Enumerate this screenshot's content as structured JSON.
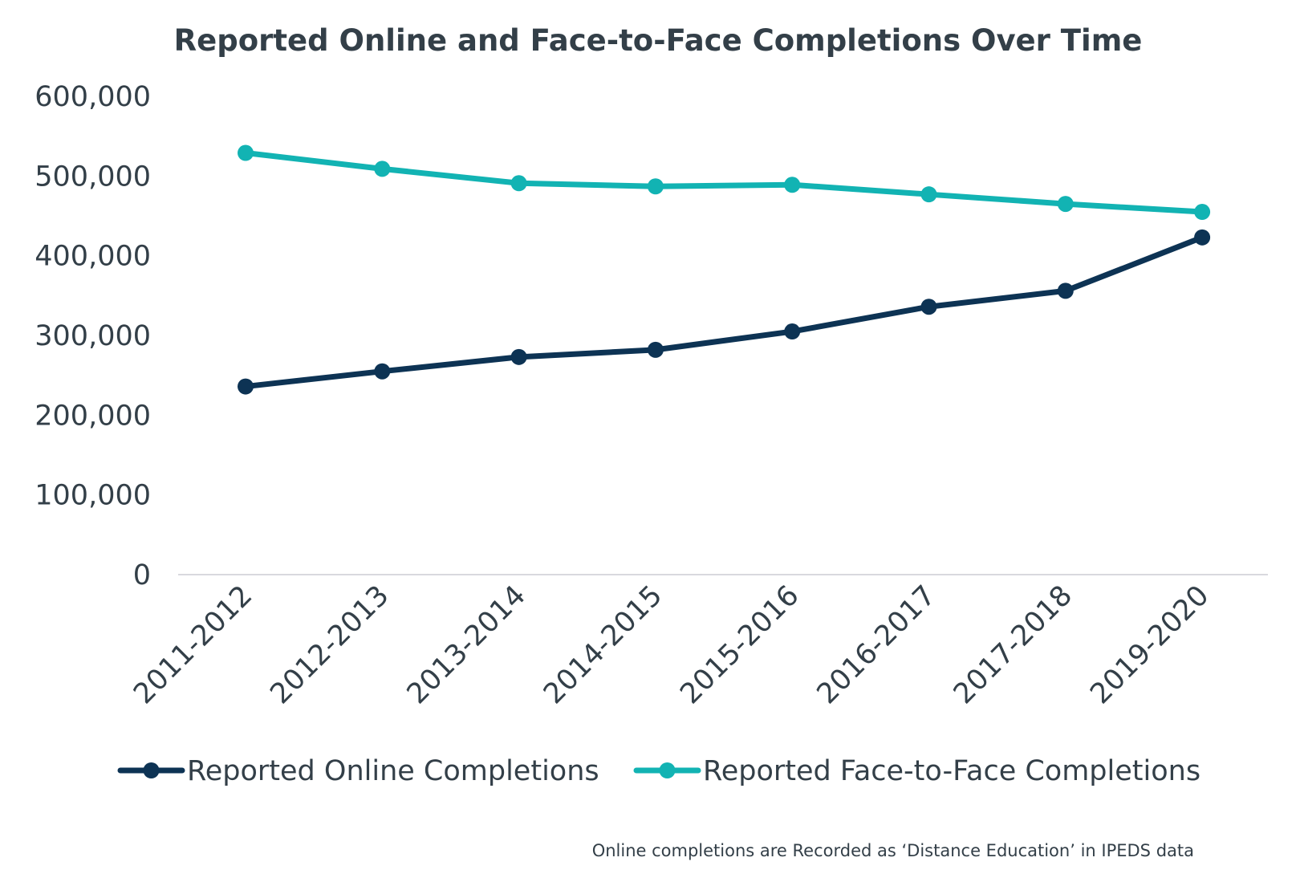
{
  "chart_data": {
    "type": "line",
    "title": "Reported Online and Face-to-Face Completions Over Time",
    "categories": [
      "2011-2012",
      "2012-2013",
      "2013-2014",
      "2014-2015",
      "2015-2016",
      "2016-2017",
      "2017-2018",
      "2019-2020"
    ],
    "series": [
      {
        "name": "Reported Online Completions",
        "color": "#0d3354",
        "values": [
          236000,
          255000,
          273000,
          282000,
          305000,
          336000,
          356000,
          423000
        ]
      },
      {
        "name": "Reported Face-to-Face Completions",
        "color": "#12b3b3",
        "values": [
          529000,
          509000,
          491000,
          487000,
          489000,
          477000,
          465000,
          455000
        ]
      }
    ],
    "ylim": [
      0,
      600000
    ],
    "yticks": [
      0,
      100000,
      200000,
      300000,
      400000,
      500000,
      600000
    ],
    "ytick_labels": [
      "0",
      "100,000",
      "200,000",
      "300,000",
      "400,000",
      "500,000",
      "600,000"
    ],
    "xlabel": "",
    "ylabel": "",
    "grid": false,
    "legend_position": "bottom",
    "axis_color": "#d9d9de",
    "note": "Online completions are Recorded as ‘Distance Education’ in IPEDS data"
  }
}
